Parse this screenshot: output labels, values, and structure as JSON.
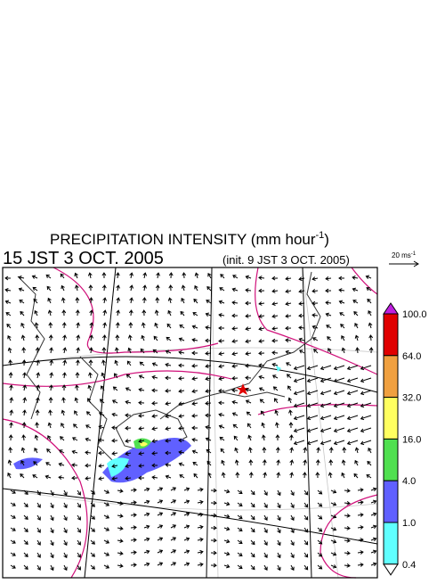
{
  "header": {
    "title": "PRECIPITATION INTENSITY (mm hour",
    "title_sup": "-1",
    "title_end": ")",
    "valid_time": "15 JST 3 OCT. 2005",
    "init_time": "(init. 9 JST 3 OCT. 2005)"
  },
  "wind_scale": {
    "label": "20 ms",
    "label_sup": "-1"
  },
  "colorbar": {
    "labels": [
      "100.0",
      "64.0",
      "32.0",
      "16.0",
      "4.0",
      "1.0",
      "0.4"
    ],
    "colors": [
      "#c020e0",
      "#e00000",
      "#f0a040",
      "#ffff60",
      "#50e050",
      "#6060ff",
      "#60ffff",
      "#ffffff"
    ]
  }
}
